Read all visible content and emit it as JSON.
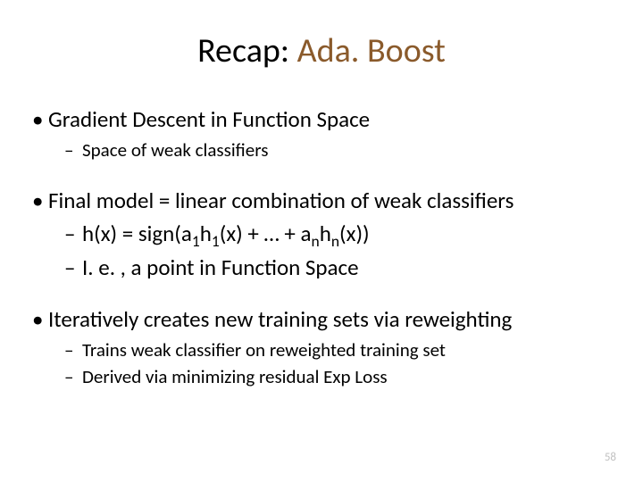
{
  "title_pre": "Recap: ",
  "title_accent": "Ada. Boost",
  "bullets": [
    {
      "text": "Gradient Descent in Function Space",
      "sub_large": false,
      "subs": [
        "Space of weak classifiers"
      ]
    },
    {
      "text": "Final model = linear combination of weak classifiers",
      "sub_large": true,
      "subs": [
        "h(x) = sign(a_1h_1(x) + … + a_nh_n(x))",
        "I. e. , a point in Function Space"
      ]
    },
    {
      "text": "Iteratively creates new training sets via reweighting",
      "sub_large": false,
      "subs": [
        "Trains weak classifier on reweighted training set",
        "Derived via minimizing residual Exp Loss"
      ]
    }
  ],
  "page_number": "58",
  "colors": {
    "accent": "#8a5a2b",
    "text": "#000000",
    "pagenum": "#bfbfbf",
    "background": "#ffffff"
  },
  "fonts": {
    "title_size": 38,
    "bullet_size": 25,
    "sub_size": 21
  }
}
